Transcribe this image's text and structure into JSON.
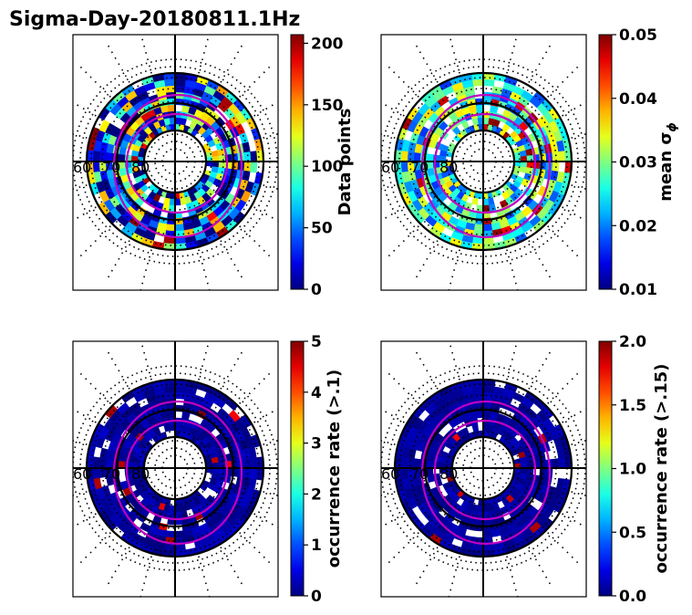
{
  "title": "Sigma-Day-20180811.1Hz",
  "chart_data": [
    {
      "type": "heatmap",
      "projection": "polar",
      "colormap": "jet",
      "lat_tick_labels": [
        "60",
        "70",
        "80"
      ],
      "colorbar": {
        "label": "Data points",
        "label_html": "",
        "ticks": [
          "0",
          "50",
          "100",
          "150",
          "200"
        ],
        "range": [
          0,
          207
        ]
      },
      "intensity": {
        "base": 0.28,
        "amp": 0.45,
        "seed": 11,
        "hot": 0.05
      }
    },
    {
      "type": "heatmap",
      "projection": "polar",
      "colormap": "jet",
      "lat_tick_labels": [
        "60",
        "70",
        "80"
      ],
      "colorbar": {
        "label": "mean σ",
        "label_sub": "ϕ",
        "ticks": [
          "0.01",
          "0.02",
          "0.03",
          "0.04",
          "0.05"
        ],
        "range": [
          0.01,
          0.05
        ]
      },
      "intensity": {
        "base": 0.42,
        "amp": 0.25,
        "seed": 23,
        "hot": 0.06
      }
    },
    {
      "type": "heatmap",
      "projection": "polar",
      "colormap": "jet",
      "lat_tick_labels": [
        "60",
        "70",
        "80"
      ],
      "colorbar": {
        "label": "occurrence rate (>.1)",
        "ticks": [
          "0",
          "1",
          "2",
          "3",
          "4",
          "5"
        ],
        "range": [
          0,
          5
        ]
      },
      "intensity": {
        "base": 0.03,
        "amp": 0.04,
        "seed": 37,
        "hot": 0.04
      }
    },
    {
      "type": "heatmap",
      "projection": "polar",
      "colormap": "jet",
      "lat_tick_labels": [
        "60",
        "70",
        "80"
      ],
      "colorbar": {
        "label": "occurrence rate (>.15)",
        "ticks": [
          "0.0",
          "0.5",
          "1.0",
          "1.5",
          "2.0"
        ],
        "range": [
          0,
          2
        ]
      },
      "intensity": {
        "base": 0.03,
        "amp": 0.03,
        "seed": 51,
        "hot": 0.03
      }
    }
  ]
}
